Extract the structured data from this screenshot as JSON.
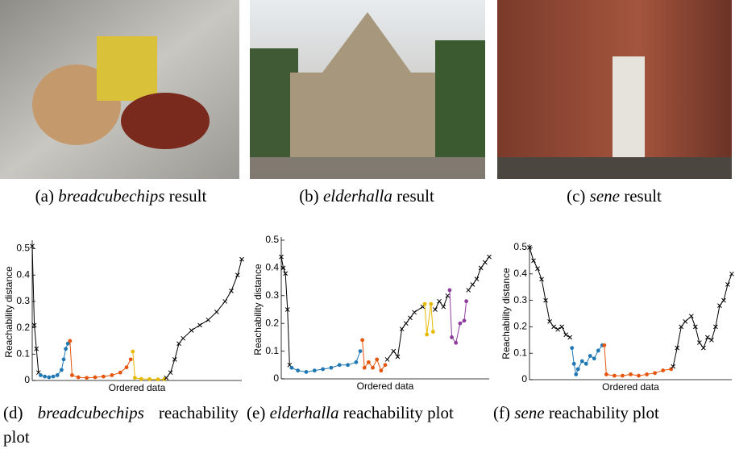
{
  "captions": [
    {
      "label": "(a)",
      "name": "breadcubechips",
      "text": "result"
    },
    {
      "label": "(b)",
      "name": "elderhalla",
      "text": "result"
    },
    {
      "label": "(c)",
      "name": "sene",
      "text": "result"
    },
    {
      "label": "(d)",
      "name": "breadcubechips",
      "text": "reachability plot"
    },
    {
      "label": "(e)",
      "name": "elderhalla",
      "text": "reachability plot"
    },
    {
      "label": "(f)",
      "name": "sene",
      "text": "reachability plot"
    }
  ],
  "chart_data": [
    {
      "type": "line",
      "xlabel": "Ordered data",
      "ylabel": "Reachability distance",
      "xlim": [
        0,
        100
      ],
      "ylim": [
        0,
        0.52
      ],
      "yticks": [
        0,
        0.1,
        0.2,
        0.3,
        0.4,
        0.5
      ],
      "series": [
        {
          "color": "#000000",
          "x": [
            0,
            1,
            2,
            3
          ],
          "values": [
            0.51,
            0.21,
            0.12,
            0.03
          ]
        },
        {
          "color": "#1f77b4",
          "x": [
            4,
            6,
            8,
            10,
            12,
            14,
            15,
            16,
            17
          ],
          "values": [
            0.02,
            0.015,
            0.012,
            0.015,
            0.02,
            0.04,
            0.08,
            0.12,
            0.14
          ]
        },
        {
          "color": "#e6550d",
          "x": [
            18,
            19,
            22,
            26,
            30,
            34,
            38,
            42,
            45,
            47
          ],
          "values": [
            0.15,
            0.02,
            0.012,
            0.01,
            0.012,
            0.015,
            0.02,
            0.03,
            0.05,
            0.08
          ]
        },
        {
          "color": "#e6b800",
          "x": [
            48,
            49,
            52,
            56,
            60,
            63
          ],
          "values": [
            0.11,
            0.01,
            0.006,
            0.005,
            0.004,
            0.005
          ]
        },
        {
          "color": "#000000",
          "x": [
            64,
            66,
            68,
            70,
            72,
            76,
            80,
            84,
            88,
            92,
            95,
            98,
            100
          ],
          "values": [
            0.01,
            0.03,
            0.08,
            0.14,
            0.16,
            0.19,
            0.21,
            0.23,
            0.26,
            0.3,
            0.34,
            0.4,
            0.46
          ]
        }
      ]
    },
    {
      "type": "line",
      "xlabel": "Ordered data",
      "ylabel": "Reachability distance",
      "xlim": [
        0,
        100
      ],
      "ylim": [
        0,
        0.5
      ],
      "yticks": [
        0,
        0.1,
        0.2,
        0.3,
        0.4,
        0.5
      ],
      "series": [
        {
          "color": "#000000",
          "x": [
            0,
            1,
            2,
            3,
            4
          ],
          "values": [
            0.44,
            0.4,
            0.38,
            0.25,
            0.05
          ]
        },
        {
          "color": "#1f77b4",
          "x": [
            5,
            8,
            12,
            16,
            20,
            24,
            28,
            32,
            36,
            38
          ],
          "values": [
            0.04,
            0.03,
            0.025,
            0.03,
            0.035,
            0.04,
            0.05,
            0.05,
            0.06,
            0.1
          ]
        },
        {
          "color": "#e6550d",
          "x": [
            39,
            40,
            42,
            44,
            46,
            48,
            50
          ],
          "values": [
            0.14,
            0.04,
            0.06,
            0.04,
            0.07,
            0.03,
            0.05
          ]
        },
        {
          "color": "#000000",
          "x": [
            51,
            54,
            56,
            58,
            60,
            62,
            64,
            68
          ],
          "values": [
            0.07,
            0.1,
            0.08,
            0.18,
            0.2,
            0.22,
            0.24,
            0.26
          ]
        },
        {
          "color": "#e6b800",
          "x": [
            69,
            70,
            72,
            73
          ],
          "values": [
            0.27,
            0.16,
            0.27,
            0.17
          ]
        },
        {
          "color": "#000000",
          "x": [
            74,
            76,
            78,
            80
          ],
          "values": [
            0.25,
            0.28,
            0.26,
            0.3
          ]
        },
        {
          "color": "#8e3c9e",
          "x": [
            81,
            82,
            84,
            86,
            88,
            89
          ],
          "values": [
            0.32,
            0.15,
            0.13,
            0.2,
            0.21,
            0.28
          ]
        },
        {
          "color": "#000000",
          "x": [
            90,
            92,
            94,
            96,
            98,
            100
          ],
          "values": [
            0.32,
            0.34,
            0.36,
            0.4,
            0.42,
            0.44
          ]
        }
      ]
    },
    {
      "type": "line",
      "xlabel": "Ordered data",
      "ylabel": "Reachability distance",
      "xlim": [
        0,
        100
      ],
      "ylim": [
        0,
        0.5
      ],
      "yticks": [
        0,
        0.1,
        0.2,
        0.3,
        0.4,
        0.5
      ],
      "series": [
        {
          "color": "#000000",
          "x": [
            0,
            2,
            4,
            6,
            8,
            10,
            12,
            14,
            16,
            18,
            20
          ],
          "values": [
            0.5,
            0.45,
            0.42,
            0.38,
            0.3,
            0.22,
            0.2,
            0.19,
            0.2,
            0.17,
            0.16
          ]
        },
        {
          "color": "#1f77b4",
          "x": [
            21,
            22,
            23,
            24,
            26,
            28,
            30,
            32,
            34,
            36
          ],
          "values": [
            0.12,
            0.06,
            0.02,
            0.04,
            0.07,
            0.06,
            0.09,
            0.08,
            0.11,
            0.13
          ]
        },
        {
          "color": "#e6550d",
          "x": [
            37,
            38,
            42,
            46,
            50,
            54,
            58,
            62,
            66,
            70
          ],
          "values": [
            0.13,
            0.02,
            0.015,
            0.015,
            0.02,
            0.015,
            0.02,
            0.025,
            0.035,
            0.04
          ]
        },
        {
          "color": "#000000",
          "x": [
            71,
            73,
            75,
            77,
            80,
            82,
            84,
            86,
            88,
            90,
            92,
            94,
            96,
            98,
            100
          ],
          "values": [
            0.05,
            0.12,
            0.2,
            0.22,
            0.24,
            0.2,
            0.14,
            0.12,
            0.16,
            0.15,
            0.2,
            0.28,
            0.3,
            0.36,
            0.4
          ]
        }
      ]
    }
  ]
}
